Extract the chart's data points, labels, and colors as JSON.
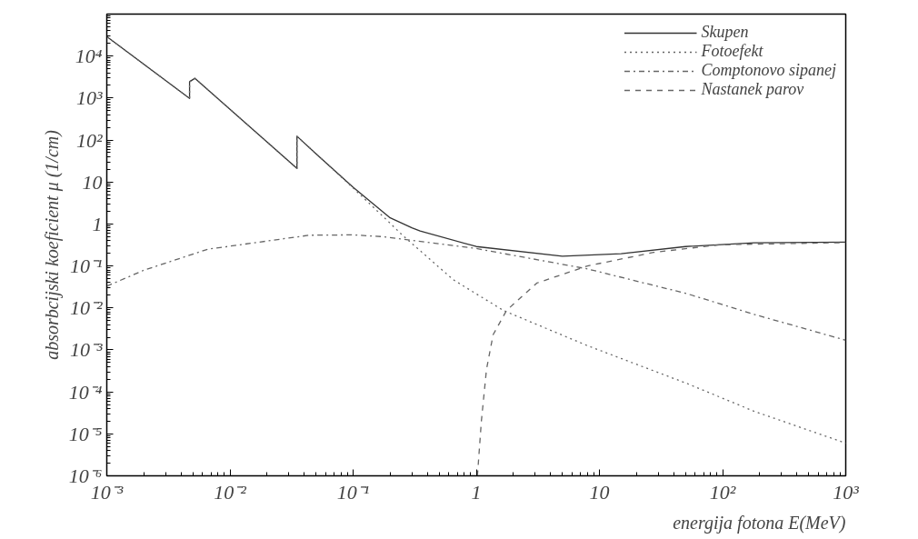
{
  "chart_data": {
    "type": "line",
    "log": "xy",
    "xlabel": "energija fotona E(MeV)",
    "ylabel": "absorbcijski koeficient μ (1/cm)",
    "xlim": [
      0.001,
      1000
    ],
    "ylim": [
      1e-06,
      100000
    ],
    "xticks": [
      {
        "value": 0.001,
        "label": "10⁻³"
      },
      {
        "value": 0.01,
        "label": "10⁻²"
      },
      {
        "value": 0.1,
        "label": "10⁻¹"
      },
      1,
      10,
      {
        "value": 100,
        "label": "10²"
      },
      {
        "value": 1000,
        "label": "10³"
      }
    ],
    "yticks": [
      {
        "value": 1e-06,
        "label": "10⁻⁶"
      },
      {
        "value": 1e-05,
        "label": "10⁻⁵"
      },
      {
        "value": 0.0001,
        "label": "10⁻⁴"
      },
      {
        "value": 0.001,
        "label": "10⁻³"
      },
      {
        "value": 0.01,
        "label": "10⁻²"
      },
      {
        "value": 0.1,
        "label": "10⁻¹"
      },
      1,
      10,
      {
        "value": 100,
        "label": "10²"
      },
      {
        "value": 1000,
        "label": "10³"
      },
      {
        "value": 10000,
        "label": "10⁴"
      },
      {
        "value": 100000,
        "label": null
      }
    ],
    "grid": false,
    "legend": "top right",
    "series": [
      {
        "name": "Skupen",
        "color": "#333333",
        "line_style": "solid",
        "x": [
          0.001,
          0.0047,
          0.0047,
          0.0052,
          0.035,
          0.035,
          0.05,
          0.1,
          0.2,
          0.3,
          0.35,
          1,
          5,
          15,
          50,
          180,
          1000
        ],
        "values": [
          29000,
          980,
          2450,
          2950,
          21,
          123,
          47,
          7.5,
          1.4,
          0.81,
          0.68,
          0.29,
          0.17,
          0.195,
          0.29,
          0.355,
          0.37
        ]
      },
      {
        "name": "Fotoefekt",
        "color": "#666666",
        "line_style": "dotted",
        "x": [
          0.001,
          0.0047,
          0.0047,
          0.0052,
          0.035,
          0.035,
          0.05,
          0.1,
          0.19,
          0.25,
          0.65,
          1.66,
          8,
          51,
          178,
          1000
        ],
        "values": [
          29000,
          980,
          2450,
          2950,
          21,
          123,
          47,
          7.2,
          1.2,
          0.55,
          0.047,
          0.0087,
          0.00126,
          0.00016,
          3.5e-05,
          6e-06
        ]
      },
      {
        "name": "Comptonovo sipanej",
        "color": "#666666",
        "line_style": "dashdot",
        "x": [
          0.001,
          0.002,
          0.0066,
          0.044,
          0.1,
          0.17,
          1,
          8,
          51,
          178,
          1000
        ],
        "values": [
          0.033,
          0.079,
          0.25,
          0.54,
          0.55,
          0.5,
          0.26,
          0.085,
          0.022,
          0.0071,
          0.0017
        ]
      },
      {
        "name": "Nastanek parov",
        "color": "#666666",
        "line_style": "dashed",
        "x": [
          1.022,
          1.1,
          1.21,
          1.37,
          1.76,
          3.1,
          8,
          27.5,
          95,
          1000
        ],
        "values": [
          1e-06,
          2e-05,
          0.00034,
          0.0023,
          0.0087,
          0.039,
          0.1,
          0.21,
          0.32,
          0.36
        ]
      }
    ]
  }
}
